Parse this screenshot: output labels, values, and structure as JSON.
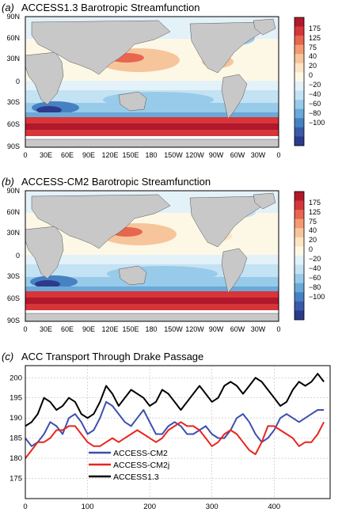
{
  "panels": [
    {
      "letter": "(a)",
      "title": "ACCESS1.3 Barotropic Streamfunction",
      "lat_ticks": [
        "90N",
        "60N",
        "30N",
        "0",
        "30S",
        "60S",
        "90S"
      ],
      "lon_ticks": [
        "0",
        "30E",
        "60E",
        "90E",
        "120E",
        "150E",
        "180",
        "150W",
        "120W",
        "90W",
        "60W",
        "30W",
        "0"
      ],
      "colorbar_ticks": [
        "175",
        "125",
        "75",
        "40",
        "20",
        "0",
        "−20",
        "−40",
        "−60",
        "−80",
        "−100"
      ]
    },
    {
      "letter": "(b)",
      "title": "ACCESS-CM2 Barotropic Streamfunction",
      "lat_ticks": [
        "90N",
        "60N",
        "30N",
        "0",
        "30S",
        "60S",
        "90S"
      ],
      "lon_ticks": [
        "0",
        "30E",
        "60E",
        "90E",
        "120E",
        "150E",
        "180",
        "150W",
        "120W",
        "90W",
        "60W",
        "30W",
        "0"
      ],
      "colorbar_ticks": [
        "175",
        "125",
        "75",
        "40",
        "20",
        "0",
        "−20",
        "−40",
        "−60",
        "−80",
        "−100"
      ]
    }
  ],
  "colors": {
    "colorbar": [
      "#b2182b",
      "#d6363a",
      "#e8654f",
      "#f39a73",
      "#f7c59b",
      "#fbe5c4",
      "#fdf8e6",
      "#e3f1f9",
      "#c3e2f3",
      "#97cbe9",
      "#6aa9d9",
      "#4681c3",
      "#3a5aa9",
      "#2c3a8c"
    ],
    "land": "#c8c8c8",
    "ACCESS-CM2": "#3e4fae",
    "ACCESS-CM2j": "#e8251f",
    "ACCESS1.3": "#000000"
  },
  "chart_data": {
    "type": "line",
    "letter": "(c)",
    "title": "ACC Transport Through Drake Passage",
    "xlabel": "",
    "ylabel": "",
    "xlim": [
      0,
      490
    ],
    "ylim": [
      170,
      203
    ],
    "x_ticks": [
      "0",
      "100",
      "200",
      "300",
      "400"
    ],
    "y_ticks": [
      "175",
      "180",
      "185",
      "190",
      "195",
      "200"
    ],
    "grid": true,
    "legend_position": "lower-left",
    "series": [
      {
        "name": "ACCESS-CM2",
        "x": [
          0,
          10,
          20,
          30,
          40,
          50,
          60,
          70,
          80,
          90,
          100,
          110,
          120,
          130,
          140,
          150,
          160,
          170,
          180,
          190,
          200,
          210,
          220,
          230,
          240,
          250,
          260,
          270,
          280,
          290,
          300,
          310,
          320,
          330,
          340,
          350,
          360,
          370,
          380,
          390,
          400,
          410,
          420,
          430,
          440,
          450,
          460,
          470,
          480
        ],
        "values": [
          185,
          183,
          184,
          186,
          189,
          188,
          186,
          190,
          191,
          189,
          186,
          187,
          190,
          194,
          193,
          191,
          189,
          188,
          190,
          192,
          189,
          186,
          186,
          188,
          189,
          188,
          186,
          186,
          187,
          188,
          186,
          185,
          185,
          187,
          190,
          191,
          189,
          186,
          184,
          185,
          187,
          190,
          191,
          190,
          189,
          190,
          191,
          192,
          192
        ]
      },
      {
        "name": "ACCESS-CM2j",
        "x": [
          0,
          10,
          20,
          30,
          40,
          50,
          60,
          70,
          80,
          90,
          100,
          110,
          120,
          130,
          140,
          150,
          160,
          170,
          180,
          190,
          200,
          210,
          220,
          230,
          240,
          250,
          260,
          270,
          280,
          290,
          300,
          310,
          320,
          330,
          340,
          350,
          360,
          370,
          380,
          390,
          400,
          410,
          420,
          430,
          440,
          450,
          460,
          470,
          480
        ],
        "values": [
          180,
          182,
          184,
          184,
          185,
          187,
          187,
          188,
          188,
          186,
          184,
          183,
          183,
          184,
          185,
          184,
          185,
          186,
          187,
          186,
          185,
          184,
          185,
          187,
          188,
          189,
          188,
          188,
          187,
          185,
          183,
          184,
          186,
          187,
          186,
          184,
          182,
          181,
          184,
          188,
          188,
          187,
          186,
          185,
          183,
          184,
          184,
          186,
          189
        ]
      },
      {
        "name": "ACCESS1.3",
        "x": [
          0,
          10,
          20,
          30,
          40,
          50,
          60,
          70,
          80,
          90,
          100,
          110,
          120,
          130,
          140,
          150,
          160,
          170,
          180,
          190,
          200,
          210,
          220,
          230,
          240,
          250,
          260,
          270,
          280,
          290,
          300,
          310,
          320,
          330,
          340,
          350,
          360,
          370,
          380,
          390,
          400,
          410,
          420,
          430,
          440,
          450,
          460,
          470,
          480
        ],
        "values": [
          188,
          189,
          191,
          195,
          194,
          192,
          193,
          195,
          194,
          191,
          190,
          191,
          194,
          198,
          196,
          193,
          195,
          197,
          196,
          195,
          193,
          194,
          197,
          196,
          194,
          192,
          194,
          196,
          198,
          196,
          194,
          195,
          198,
          199,
          198,
          196,
          198,
          200,
          199,
          197,
          195,
          193,
          194,
          197,
          199,
          198,
          199,
          201,
          199
        ]
      }
    ]
  }
}
